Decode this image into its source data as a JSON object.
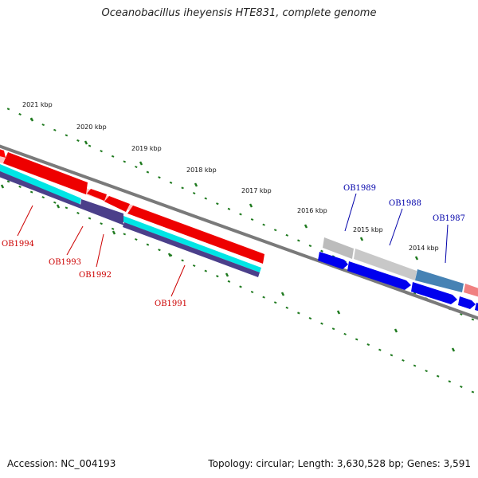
{
  "title": "Oceanobacillus iheyensis HTE831, complete genome",
  "footer": {
    "accession": "Accession: NC_004193",
    "summary": "Topology: circular; Length: 3,630,528 bp; Genes: 3,591"
  },
  "scale_labels": [
    "2021 kbp",
    "2020 kbp",
    "2019 kbp",
    "2018 kbp",
    "2017 kbp",
    "2016 kbp",
    "2015 kbp",
    "2014 kbp"
  ],
  "gene_labels": {
    "reverse": [
      "OB1994",
      "OB1993",
      "OB1992",
      "OB1991"
    ],
    "forward": [
      "OB1989",
      "OB1988",
      "OB1987"
    ]
  },
  "colors": {
    "reverse_label": "#cc0000",
    "forward_label": "#0000aa",
    "backbone": "#7a7a7a",
    "tick": "#1f7a1f",
    "cds_reverse": "#ff0000",
    "cds_forward": "#0000ee",
    "rna_cyan": "#00e5e5",
    "pseudo_purple": "#4b3f8a",
    "gray_feature": "#bcbcbc",
    "steel_feature": "#4682b4",
    "pink_feature": "#f08080"
  }
}
